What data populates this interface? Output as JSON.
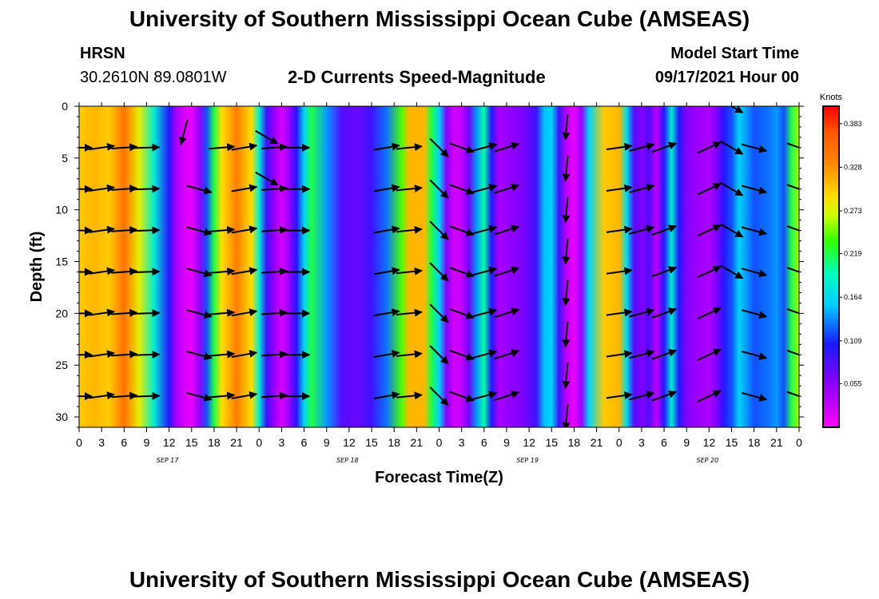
{
  "header": {
    "title": "University of Southern Mississippi Ocean Cube (AMSEAS)",
    "station": "HRSN",
    "location": "30.2610N  89.0801W",
    "product": "2-D Currents Speed-Magnitude",
    "start_label": "Model Start Time",
    "start_value": "09/17/2021 Hour 00"
  },
  "footer": {
    "title": "University of Southern Mississippi Ocean Cube (AMSEAS)"
  },
  "chart_data": {
    "type": "heatmap",
    "title": "2-D Currents Speed-Magnitude",
    "xlabel": "Forecast Time(Z)",
    "ylabel": "Depth (ft)",
    "x_ticks": [
      "0",
      "3",
      "6",
      "9",
      "12",
      "15",
      "18",
      "21",
      "0",
      "3",
      "6",
      "9",
      "12",
      "15",
      "18",
      "21",
      "0",
      "3",
      "6",
      "9",
      "12",
      "15",
      "18",
      "21",
      "0",
      "3",
      "6",
      "9",
      "12",
      "15",
      "18",
      "21",
      "0"
    ],
    "day_labels": [
      {
        "label": "SEP 17",
        "hour": 12
      },
      {
        "label": "SEP 18",
        "hour": 36
      },
      {
        "label": "SEP 19",
        "hour": 60
      },
      {
        "label": "SEP 20",
        "hour": 84
      }
    ],
    "x_range_hours": [
      0,
      96
    ],
    "y_ticks": [
      0,
      5,
      10,
      15,
      20,
      25,
      30
    ],
    "ylim": [
      0,
      31
    ],
    "y_inverted": true,
    "colorbar": {
      "unit": "Knots",
      "ticks": [
        "0.383",
        "0.328",
        "0.273",
        "0.219",
        "0.164",
        "0.109",
        "0.055"
      ],
      "range": [
        0,
        0.405
      ]
    },
    "speed_profile_surface": [
      {
        "h": 0,
        "v": 0.3
      },
      {
        "h": 2,
        "v": 0.31
      },
      {
        "h": 4,
        "v": 0.3
      },
      {
        "h": 6,
        "v": 0.35
      },
      {
        "h": 8,
        "v": 0.28
      },
      {
        "h": 10,
        "v": 0.18
      },
      {
        "h": 12,
        "v": 0.1
      },
      {
        "h": 13,
        "v": 0.04
      },
      {
        "h": 14,
        "v": 0.02
      },
      {
        "h": 15,
        "v": 0.01
      },
      {
        "h": 16,
        "v": 0.05
      },
      {
        "h": 17,
        "v": 0.12
      },
      {
        "h": 18,
        "v": 0.22
      },
      {
        "h": 19,
        "v": 0.29
      },
      {
        "h": 21,
        "v": 0.34
      },
      {
        "h": 23,
        "v": 0.29
      },
      {
        "h": 24,
        "v": 0.18
      },
      {
        "h": 25,
        "v": 0.09
      },
      {
        "h": 26,
        "v": 0.05
      },
      {
        "h": 27,
        "v": 0.02
      },
      {
        "h": 28,
        "v": 0.05
      },
      {
        "h": 29,
        "v": 0.1
      },
      {
        "h": 30,
        "v": 0.16
      },
      {
        "h": 31,
        "v": 0.22
      },
      {
        "h": 33,
        "v": 0.14
      },
      {
        "h": 35,
        "v": 0.08
      },
      {
        "h": 37,
        "v": 0.07
      },
      {
        "h": 39,
        "v": 0.09
      },
      {
        "h": 41,
        "v": 0.13
      },
      {
        "h": 43,
        "v": 0.24
      },
      {
        "h": 44,
        "v": 0.31
      },
      {
        "h": 46,
        "v": 0.31
      },
      {
        "h": 47,
        "v": 0.22
      },
      {
        "h": 48,
        "v": 0.16
      },
      {
        "h": 49,
        "v": 0.06
      },
      {
        "h": 50,
        "v": 0.02
      },
      {
        "h": 51,
        "v": 0.03
      },
      {
        "h": 52,
        "v": 0.07
      },
      {
        "h": 53,
        "v": 0.14
      },
      {
        "h": 54,
        "v": 0.2
      },
      {
        "h": 55,
        "v": 0.1
      },
      {
        "h": 56,
        "v": 0.04
      },
      {
        "h": 57,
        "v": 0.05
      },
      {
        "h": 59,
        "v": 0.06
      },
      {
        "h": 61,
        "v": 0.09
      },
      {
        "h": 62,
        "v": 0.15
      },
      {
        "h": 63,
        "v": 0.16
      },
      {
        "h": 64,
        "v": 0.09
      },
      {
        "h": 65,
        "v": 0.03
      },
      {
        "h": 66,
        "v": 0.01
      },
      {
        "h": 67,
        "v": 0.05
      },
      {
        "h": 68,
        "v": 0.16
      },
      {
        "h": 70,
        "v": 0.3
      },
      {
        "h": 72,
        "v": 0.31
      },
      {
        "h": 73,
        "v": 0.17
      },
      {
        "h": 74,
        "v": 0.08
      },
      {
        "h": 75,
        "v": 0.06
      },
      {
        "h": 76,
        "v": 0.08
      },
      {
        "h": 77,
        "v": 0.03
      },
      {
        "h": 78,
        "v": 0.1
      },
      {
        "h": 79,
        "v": 0.18
      },
      {
        "h": 80,
        "v": 0.1
      },
      {
        "h": 81,
        "v": 0.06
      },
      {
        "h": 82,
        "v": 0.05
      },
      {
        "h": 84,
        "v": 0.04
      },
      {
        "h": 85,
        "v": 0.06
      },
      {
        "h": 86,
        "v": 0.1
      },
      {
        "h": 87,
        "v": 0.12
      },
      {
        "h": 88,
        "v": 0.16
      },
      {
        "h": 89,
        "v": 0.14
      },
      {
        "h": 90,
        "v": 0.12
      },
      {
        "h": 92,
        "v": 0.13
      },
      {
        "h": 93,
        "v": 0.14
      },
      {
        "h": 94,
        "v": 0.12
      },
      {
        "h": 95,
        "v": 0.22
      },
      {
        "h": 96,
        "v": 0.26
      }
    ],
    "vectors": [
      {
        "h": 0,
        "depths": [
          4,
          8,
          12,
          16,
          20,
          24,
          28
        ],
        "angle": 0
      },
      {
        "h": 3,
        "depths": [
          4,
          8,
          12,
          16,
          20,
          24,
          28
        ],
        "angle": 8
      },
      {
        "h": 6,
        "depths": [
          4,
          8,
          12,
          16,
          20,
          24,
          28
        ],
        "angle": 4
      },
      {
        "h": 9,
        "depths": [
          4,
          8,
          12,
          16,
          20,
          24,
          28
        ],
        "angle": 2
      },
      {
        "h": 14,
        "depths": [
          2.5
        ],
        "angle": -105
      },
      {
        "h": 16,
        "depths": [
          8,
          12,
          16,
          20,
          24,
          28
        ],
        "angle": -15
      },
      {
        "h": 19,
        "depths": [
          4,
          12,
          16,
          20,
          24,
          28
        ],
        "angle": 5
      },
      {
        "h": 22,
        "depths": [
          4,
          8,
          12,
          16,
          20,
          24,
          28
        ],
        "angle": 10
      },
      {
        "h": 25,
        "depths": [
          3,
          7
        ],
        "angle": -30
      },
      {
        "h": 26,
        "depths": [
          4,
          8,
          12,
          16,
          20,
          24,
          28
        ],
        "angle": 4
      },
      {
        "h": 29,
        "depths": [
          4,
          8,
          12,
          16,
          20,
          24,
          28
        ],
        "angle": 0
      },
      {
        "h": 41,
        "depths": [
          4,
          8,
          12,
          16,
          20,
          24,
          28
        ],
        "angle": 10
      },
      {
        "h": 44,
        "depths": [
          4,
          8,
          12,
          16,
          20,
          24,
          28
        ],
        "angle": 6
      },
      {
        "h": 48,
        "depths": [
          4,
          8,
          12,
          16,
          20,
          24,
          28
        ],
        "angle": -45
      },
      {
        "h": 51,
        "depths": [
          4,
          8,
          12,
          16,
          20,
          24,
          28
        ],
        "angle": -20
      },
      {
        "h": 54,
        "depths": [
          4,
          8,
          12,
          16,
          20,
          24,
          28
        ],
        "angle": 15
      },
      {
        "h": 57,
        "depths": [
          4,
          8,
          12,
          16,
          20,
          24,
          28
        ],
        "angle": 18
      },
      {
        "h": 65,
        "depths": [
          2,
          6,
          10,
          14,
          18,
          22,
          26,
          30
        ],
        "angle": -95
      },
      {
        "h": 72,
        "depths": [
          4,
          8,
          12,
          16,
          20,
          24,
          28
        ],
        "angle": 8
      },
      {
        "h": 75,
        "depths": [
          4,
          8,
          12,
          20,
          24,
          28
        ],
        "angle": 15
      },
      {
        "h": 78,
        "depths": [
          4,
          12,
          16,
          20,
          24,
          28
        ],
        "angle": 20
      },
      {
        "h": 84,
        "depths": [
          4,
          8,
          12,
          16,
          20,
          24,
          28
        ],
        "angle": 25
      },
      {
        "h": 87,
        "depths": [
          0,
          4,
          8,
          12,
          16
        ],
        "angle": -30
      },
      {
        "h": 90,
        "depths": [
          4,
          8,
          12,
          16,
          20,
          24,
          28
        ],
        "angle": -15
      },
      {
        "h": 96,
        "depths": [
          4,
          8,
          12,
          16,
          20,
          24,
          28
        ],
        "angle": -20
      }
    ]
  }
}
